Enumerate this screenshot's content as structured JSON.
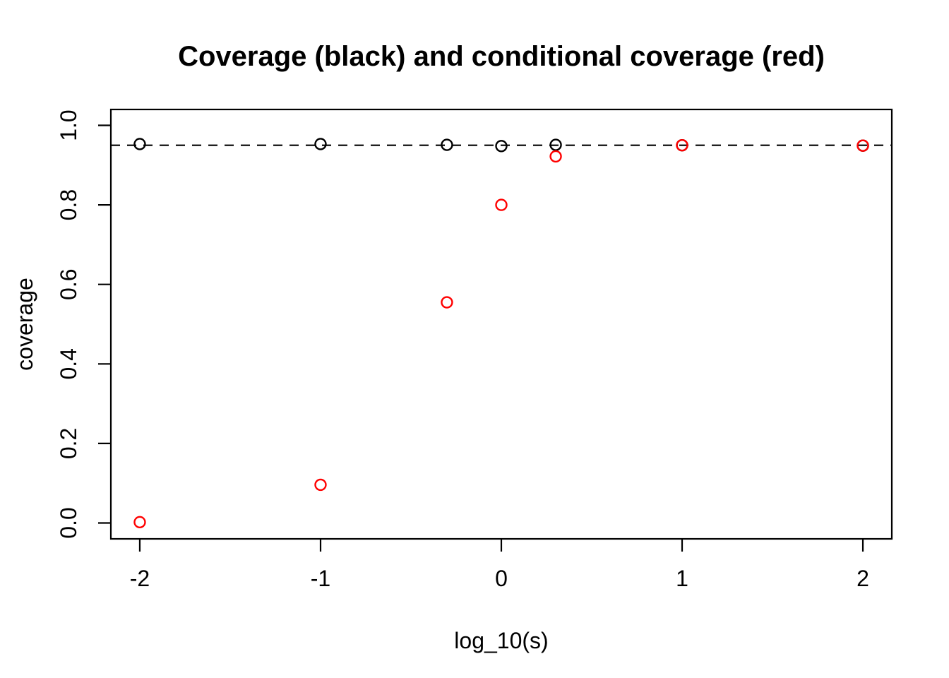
{
  "page": {
    "background_color": "#FFFFFF",
    "foreground_color": "#000000"
  },
  "chart_data": {
    "type": "scatter",
    "title": "Coverage (black) and conditional coverage (red)",
    "xlabel": "log_10(s)",
    "ylabel": "coverage",
    "xlim": [
      -2.16,
      2.16
    ],
    "ylim": [
      -0.04,
      1.04
    ],
    "grid": false,
    "legend_position": "none",
    "axis_color": "#000000",
    "x_ticks": [
      {
        "value": -2,
        "label": "-2"
      },
      {
        "value": -1,
        "label": "-1"
      },
      {
        "value": 0,
        "label": "0"
      },
      {
        "value": 1,
        "label": "1"
      },
      {
        "value": 2,
        "label": "2"
      }
    ],
    "y_ticks": [
      {
        "value": 0.0,
        "label": "0.0"
      },
      {
        "value": 0.2,
        "label": "0.2"
      },
      {
        "value": 0.4,
        "label": "0.4"
      },
      {
        "value": 0.6,
        "label": "0.6"
      },
      {
        "value": 0.8,
        "label": "0.8"
      },
      {
        "value": 1.0,
        "label": "1.0"
      }
    ],
    "reference_line": {
      "y": 0.95,
      "style": "dashed",
      "color": "#000000"
    },
    "series": [
      {
        "name": "coverage",
        "color": "#000000",
        "marker": "open-circle",
        "points": [
          {
            "x": -2,
            "y": 0.953
          },
          {
            "x": -1,
            "y": 0.953
          },
          {
            "x": -0.301,
            "y": 0.951
          },
          {
            "x": 0,
            "y": 0.948
          },
          {
            "x": 0.301,
            "y": 0.951
          },
          {
            "x": 1,
            "y": 0.95
          },
          {
            "x": 2,
            "y": 0.949
          }
        ]
      },
      {
        "name": "conditional coverage",
        "color": "#FF0000",
        "marker": "open-circle",
        "points": [
          {
            "x": -2,
            "y": 0.002
          },
          {
            "x": -1,
            "y": 0.096
          },
          {
            "x": -0.301,
            "y": 0.555
          },
          {
            "x": 0,
            "y": 0.8
          },
          {
            "x": 0.301,
            "y": 0.922
          },
          {
            "x": 1,
            "y": 0.95
          },
          {
            "x": 2,
            "y": 0.949
          }
        ]
      }
    ]
  }
}
